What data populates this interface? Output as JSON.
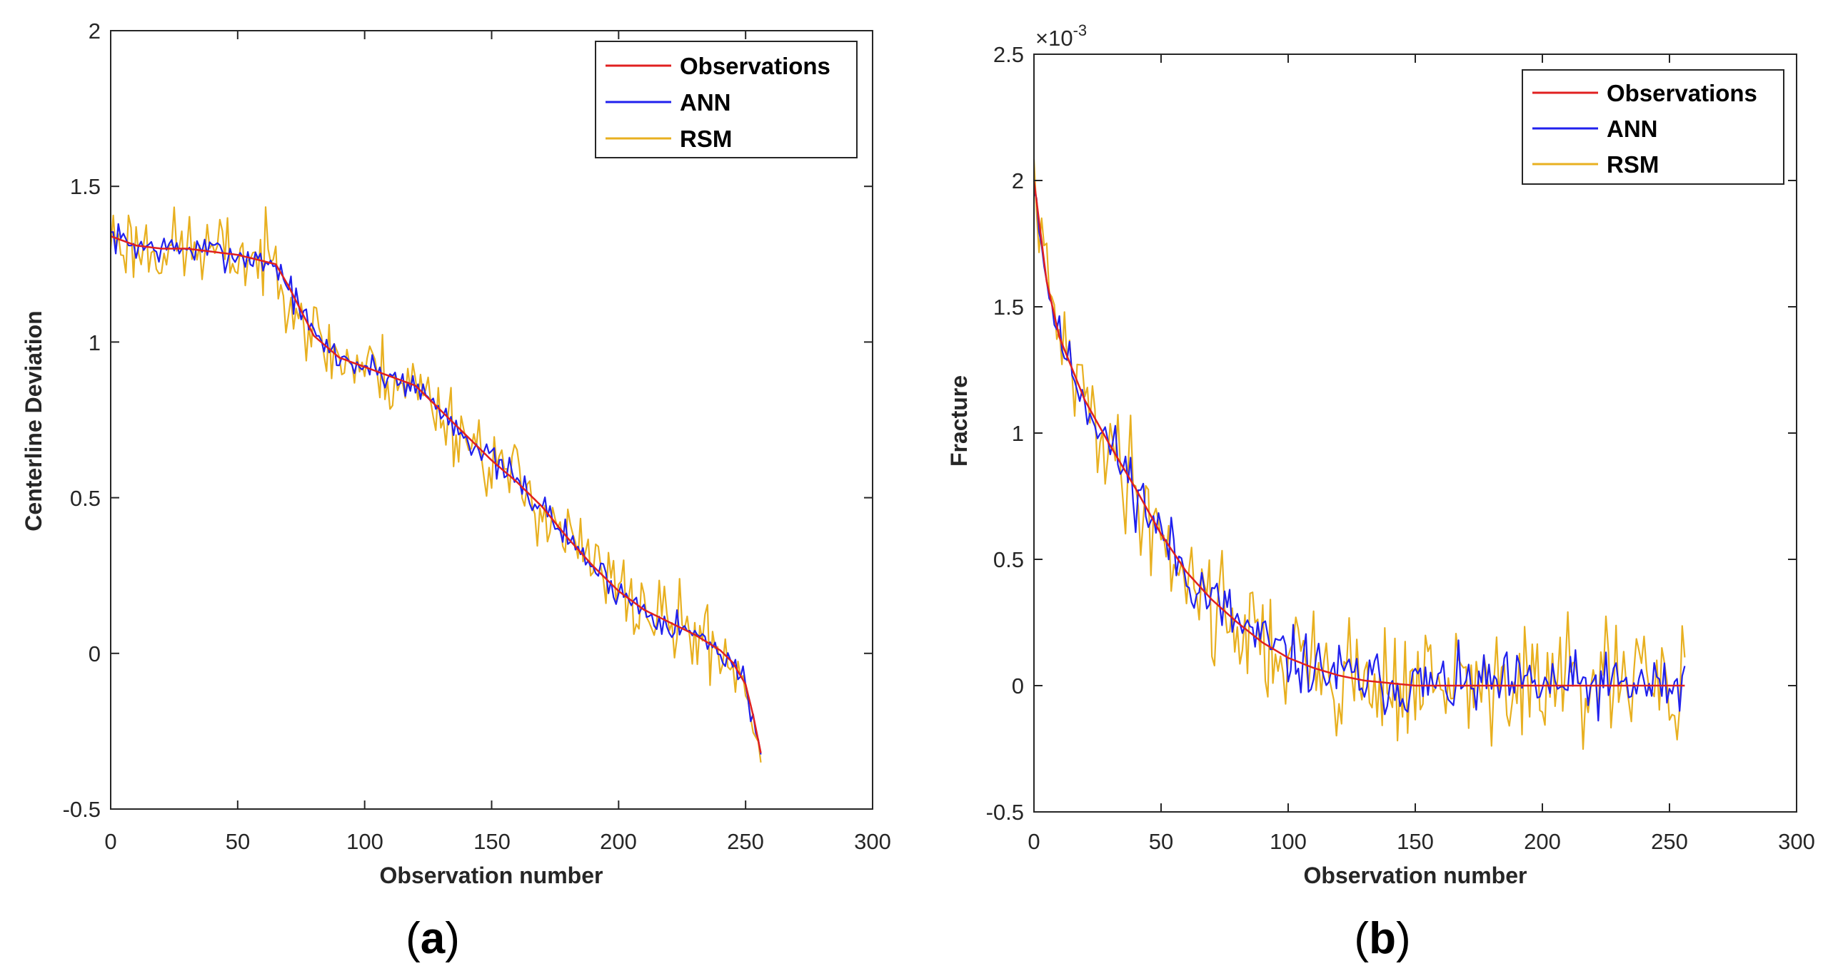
{
  "figure": {
    "panels": [
      {
        "caption_open": "(",
        "caption_letter": "a",
        "caption_close": ")"
      },
      {
        "caption_open": "(",
        "caption_letter": "b",
        "caption_close": ")"
      }
    ]
  },
  "chart_data": [
    {
      "type": "line",
      "title": "",
      "xlabel": "Observation number",
      "ylabel": "Centerline Deviation",
      "xlim": [
        0,
        300
      ],
      "ylim": [
        -0.5,
        2
      ],
      "xticks": [
        0,
        50,
        100,
        150,
        200,
        250,
        300
      ],
      "yticks": [
        -0.5,
        0,
        0.5,
        1,
        1.5,
        2
      ],
      "xtick_labels": [
        "0",
        "50",
        "100",
        "150",
        "200",
        "250",
        "300"
      ],
      "ytick_labels": [
        "-0.5",
        "0",
        "0.5",
        "1",
        "1.5",
        "2"
      ],
      "legend": [
        "Observations",
        "ANN",
        "RSM"
      ],
      "legend_position": "top-right",
      "n_points": 257,
      "series": [
        {
          "name": "Observations",
          "color": "#e02020",
          "x": [
            0,
            10,
            20,
            30,
            40,
            50,
            60,
            65,
            70,
            80,
            90,
            100,
            110,
            120,
            130,
            140,
            150,
            160,
            170,
            180,
            190,
            200,
            210,
            220,
            230,
            240,
            245,
            250,
            253,
            256
          ],
          "y": [
            1.34,
            1.31,
            1.3,
            1.3,
            1.29,
            1.28,
            1.26,
            1.25,
            1.18,
            1.02,
            0.95,
            0.92,
            0.89,
            0.86,
            0.78,
            0.7,
            0.62,
            0.55,
            0.47,
            0.37,
            0.28,
            0.2,
            0.14,
            0.1,
            0.06,
            0.01,
            -0.03,
            -0.1,
            -0.2,
            -0.32
          ]
        },
        {
          "name": "ANN",
          "color": "#2020ee",
          "noise": 0.035,
          "seed": 7
        },
        {
          "name": "RSM",
          "color": "#e8b020",
          "noise": 0.09,
          "seed": 23
        }
      ]
    },
    {
      "type": "line",
      "title": "",
      "xlabel": "Observation number",
      "ylabel": "Fracture",
      "y_scale_label": "×10",
      "y_scale_exponent": "-3",
      "xlim": [
        0,
        300
      ],
      "ylim": [
        -0.5,
        2.5
      ],
      "xticks": [
        0,
        50,
        100,
        150,
        200,
        250,
        300
      ],
      "yticks": [
        -0.5,
        0,
        0.5,
        1,
        1.5,
        2,
        2.5
      ],
      "xtick_labels": [
        "0",
        "50",
        "100",
        "150",
        "200",
        "250",
        "300"
      ],
      "ytick_labels": [
        "-0.5",
        "0",
        "0.5",
        "1",
        "1.5",
        "2",
        "2.5"
      ],
      "legend": [
        "Observations",
        "ANN",
        "RSM"
      ],
      "legend_position": "top-right",
      "n_points": 257,
      "series": [
        {
          "name": "Observations",
          "color": "#e02020",
          "x": [
            0,
            5,
            10,
            20,
            30,
            40,
            50,
            60,
            70,
            80,
            90,
            100,
            110,
            120,
            130,
            140,
            150,
            160,
            256
          ],
          "y": [
            2.0,
            1.6,
            1.38,
            1.13,
            0.95,
            0.78,
            0.6,
            0.45,
            0.34,
            0.25,
            0.17,
            0.11,
            0.07,
            0.04,
            0.02,
            0.01,
            0.0,
            0.0,
            0.0
          ]
        },
        {
          "name": "ANN",
          "color": "#2020ee",
          "noise": 0.09,
          "seed": 11
        },
        {
          "name": "RSM",
          "color": "#e8b020",
          "noise": 0.17,
          "seed": 41
        }
      ]
    }
  ]
}
